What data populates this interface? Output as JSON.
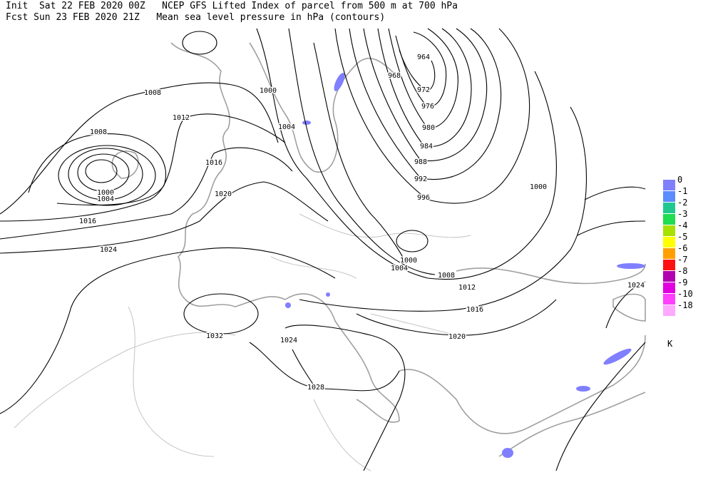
{
  "header": {
    "line1": "Init  Sat 22 FEB 2020 00Z   NCEP GFS Lifted Index of parcel from 500 m at 700 hPa",
    "line2": "Fcst Sun 23 FEB 2020 21Z   Mean sea level pressure in hPa (contours)"
  },
  "contour_labels": [
    "964",
    "968",
    "972",
    "976",
    "980",
    "984",
    "988",
    "992",
    "996",
    "1000",
    "1000",
    "1004",
    "1008",
    "1012",
    "1008",
    "1016",
    "1020",
    "1000",
    "1004",
    "1016",
    "1024",
    "1000",
    "1004",
    "1008",
    "1012",
    "1016",
    "1020",
    "1024",
    "1028",
    "1032",
    "1024"
  ],
  "legend": {
    "items": [
      {
        "label": "0",
        "color": "#7f7fff"
      },
      {
        "label": "-1",
        "color": "#5a8cff"
      },
      {
        "label": "-2",
        "color": "#20c890"
      },
      {
        "label": "-3",
        "color": "#20dc50"
      },
      {
        "label": "-4",
        "color": "#a8e000"
      },
      {
        "label": "-5",
        "color": "#ffff00"
      },
      {
        "label": "-6",
        "color": "#ffa000"
      },
      {
        "label": "-7",
        "color": "#ff1010"
      },
      {
        "label": "-8",
        "color": "#b000b0"
      },
      {
        "label": "-9",
        "color": "#e000e0"
      },
      {
        "label": "-10",
        "color": "#ff40ff"
      },
      {
        "label": "-18",
        "color": "#ffa8ff"
      }
    ],
    "unit": "K"
  }
}
